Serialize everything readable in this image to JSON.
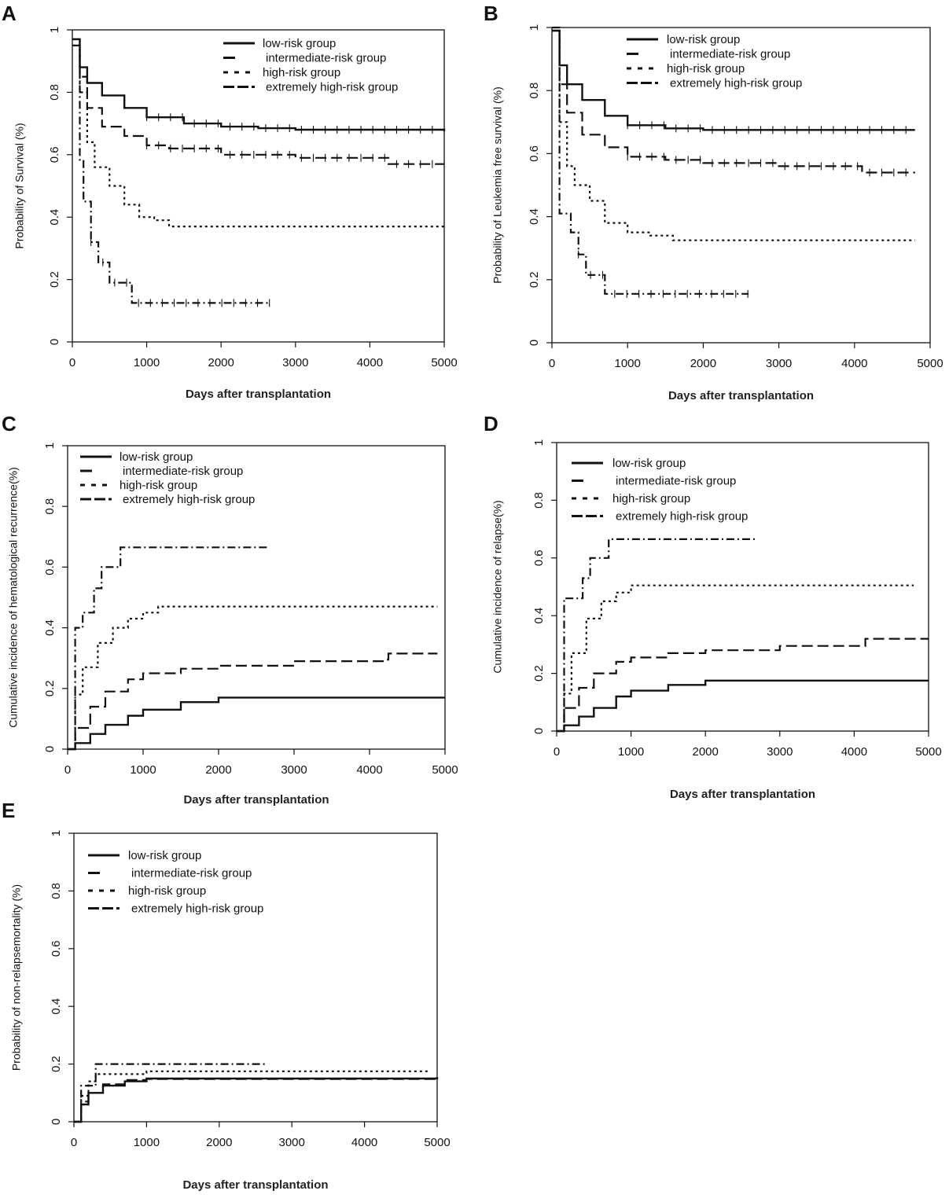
{
  "figure": {
    "x_ticks": [
      "0",
      "1000",
      "2000",
      "3000",
      "4000",
      "5000"
    ],
    "y_ticks": [
      "0",
      "0.2",
      "0.4",
      "0.6",
      "0.8",
      "1"
    ],
    "legend": [
      "low-risk group",
      "intermediate-risk group",
      "high-risk group",
      "extremely high-risk group"
    ],
    "line_color": "#111111"
  },
  "chart_data": [
    {
      "panel": "A",
      "type": "line",
      "title": "",
      "xlabel": "Days after transplantation",
      "ylabel": "Probability of Survival (%)",
      "xlim": [
        0,
        5000
      ],
      "ylim": [
        0,
        1
      ],
      "series": [
        {
          "name": "low-risk group",
          "style": "solid",
          "x": [
            0,
            100,
            200,
            400,
            700,
            1000,
            1500,
            2000,
            2500,
            3000,
            4000,
            5000
          ],
          "y": [
            0.97,
            0.88,
            0.83,
            0.79,
            0.75,
            0.72,
            0.7,
            0.69,
            0.685,
            0.68,
            0.68,
            0.675
          ]
        },
        {
          "name": "intermediate-risk group",
          "style": "longdash",
          "x": [
            0,
            100,
            200,
            400,
            700,
            1000,
            1300,
            2000,
            3000,
            4200,
            4250,
            5000
          ],
          "y": [
            0.97,
            0.85,
            0.75,
            0.69,
            0.66,
            0.63,
            0.62,
            0.6,
            0.59,
            0.59,
            0.57,
            0.57
          ]
        },
        {
          "name": "high-risk group",
          "style": "dotted",
          "x": [
            0,
            100,
            200,
            300,
            500,
            700,
            900,
            1100,
            1300,
            2000,
            3000,
            4000,
            5000
          ],
          "y": [
            0.95,
            0.8,
            0.64,
            0.56,
            0.5,
            0.44,
            0.4,
            0.39,
            0.37,
            0.37,
            0.37,
            0.37,
            0.37
          ]
        },
        {
          "name": "extremely high-risk group",
          "style": "dashdot",
          "x": [
            0,
            100,
            150,
            250,
            350,
            500,
            800,
            2650
          ],
          "y": [
            0.95,
            0.58,
            0.45,
            0.32,
            0.255,
            0.19,
            0.125,
            0.125
          ]
        }
      ]
    },
    {
      "panel": "B",
      "type": "line",
      "title": "",
      "xlabel": "Days after transplantation",
      "ylabel": "Probability of Leukemia free survival (%)",
      "xlim": [
        0,
        5000
      ],
      "ylim": [
        0,
        1
      ],
      "series": [
        {
          "name": "low-risk group",
          "style": "solid",
          "x": [
            0,
            100,
            200,
            400,
            700,
            1000,
            1500,
            2000,
            3000,
            4000,
            4800
          ],
          "y": [
            0.99,
            0.88,
            0.82,
            0.77,
            0.72,
            0.69,
            0.68,
            0.675,
            0.675,
            0.675,
            0.675
          ]
        },
        {
          "name": "intermediate-risk group",
          "style": "longdash",
          "x": [
            0,
            100,
            200,
            400,
            700,
            1000,
            1500,
            2000,
            3000,
            4000,
            4100,
            4800
          ],
          "y": [
            0.99,
            0.82,
            0.73,
            0.66,
            0.62,
            0.59,
            0.58,
            0.57,
            0.56,
            0.56,
            0.54,
            0.54
          ]
        },
        {
          "name": "high-risk group",
          "style": "dotted",
          "x": [
            0,
            100,
            200,
            300,
            500,
            700,
            1000,
            1300,
            1600,
            2000,
            3000,
            4800
          ],
          "y": [
            0.99,
            0.7,
            0.56,
            0.5,
            0.45,
            0.38,
            0.35,
            0.34,
            0.325,
            0.325,
            0.325,
            0.325
          ]
        },
        {
          "name": "extremely high-risk group",
          "style": "dashdot",
          "x": [
            0,
            100,
            150,
            250,
            350,
            450,
            650,
            700,
            2600
          ],
          "y": [
            1.0,
            0.41,
            0.41,
            0.35,
            0.28,
            0.215,
            0.215,
            0.155,
            0.155
          ]
        }
      ]
    },
    {
      "panel": "C",
      "type": "line",
      "title": "",
      "xlabel": "Days after transplantation",
      "ylabel": "Cumulative incidence of hematological recurrence(%)",
      "xlim": [
        0,
        5000
      ],
      "ylim": [
        0,
        1
      ],
      "series": [
        {
          "name": "low-risk group",
          "style": "solid",
          "x": [
            0,
            100,
            300,
            500,
            800,
            1000,
            1500,
            2000,
            5000
          ],
          "y": [
            0,
            0.02,
            0.05,
            0.08,
            0.11,
            0.13,
            0.155,
            0.17,
            0.17
          ]
        },
        {
          "name": "intermediate-risk group",
          "style": "longdash",
          "x": [
            0,
            100,
            300,
            500,
            800,
            1000,
            1500,
            2000,
            3000,
            4200,
            4250,
            4900
          ],
          "y": [
            0,
            0.07,
            0.14,
            0.19,
            0.23,
            0.25,
            0.265,
            0.275,
            0.29,
            0.295,
            0.315,
            0.315
          ]
        },
        {
          "name": "high-risk group",
          "style": "dotted",
          "x": [
            0,
            100,
            200,
            400,
            600,
            800,
            1000,
            1200,
            4900
          ],
          "y": [
            0,
            0.18,
            0.27,
            0.35,
            0.4,
            0.43,
            0.45,
            0.47,
            0.47
          ]
        },
        {
          "name": "extremely high-risk group",
          "style": "dashdot",
          "x": [
            0,
            100,
            200,
            350,
            450,
            650,
            700,
            2650
          ],
          "y": [
            0,
            0.4,
            0.45,
            0.53,
            0.6,
            0.6,
            0.665,
            0.665
          ]
        }
      ]
    },
    {
      "panel": "D",
      "type": "line",
      "title": "",
      "xlabel": "Days after transplantation",
      "ylabel": "Cumulative incidence of relapse(%)",
      "xlim": [
        0,
        5000
      ],
      "ylim": [
        0,
        1
      ],
      "series": [
        {
          "name": "low-risk group",
          "style": "solid",
          "x": [
            0,
            100,
            300,
            500,
            800,
            1000,
            1500,
            2000,
            5000
          ],
          "y": [
            0,
            0.02,
            0.05,
            0.08,
            0.12,
            0.14,
            0.16,
            0.175,
            0.175
          ]
        },
        {
          "name": "intermediate-risk group",
          "style": "longdash",
          "x": [
            0,
            100,
            300,
            500,
            800,
            1000,
            1500,
            2000,
            3000,
            4100,
            4150,
            5000
          ],
          "y": [
            0,
            0.08,
            0.15,
            0.2,
            0.24,
            0.255,
            0.27,
            0.28,
            0.295,
            0.295,
            0.32,
            0.32
          ]
        },
        {
          "name": "high-risk group",
          "style": "dotted",
          "x": [
            0,
            100,
            200,
            400,
            600,
            800,
            1000,
            4800
          ],
          "y": [
            0,
            0.13,
            0.27,
            0.39,
            0.45,
            0.48,
            0.505,
            0.505
          ]
        },
        {
          "name": "extremely high-risk group",
          "style": "dashdot",
          "x": [
            0,
            100,
            200,
            350,
            450,
            650,
            700,
            2700
          ],
          "y": [
            0,
            0.46,
            0.46,
            0.53,
            0.6,
            0.6,
            0.665,
            0.665
          ]
        }
      ]
    },
    {
      "panel": "E",
      "type": "line",
      "title": "",
      "xlabel": "Days after transplantation",
      "ylabel": "Probability of non-relapsemortality (%)",
      "xlim": [
        0,
        5000
      ],
      "ylim": [
        0,
        1
      ],
      "series": [
        {
          "name": "low-risk group",
          "style": "solid",
          "x": [
            0,
            100,
            200,
            400,
            700,
            1000,
            5000
          ],
          "y": [
            0,
            0.06,
            0.1,
            0.125,
            0.14,
            0.15,
            0.155
          ]
        },
        {
          "name": "intermediate-risk group",
          "style": "longdash",
          "x": [
            0,
            100,
            200,
            400,
            700,
            1000,
            5000
          ],
          "y": [
            0,
            0.07,
            0.1,
            0.13,
            0.145,
            0.148,
            0.148
          ]
        },
        {
          "name": "high-risk group",
          "style": "dotted",
          "x": [
            0,
            100,
            200,
            300,
            1000,
            4900
          ],
          "y": [
            0,
            0.09,
            0.14,
            0.165,
            0.175,
            0.175
          ]
        },
        {
          "name": "extremely high-risk group",
          "style": "dashdot",
          "x": [
            0,
            100,
            250,
            300,
            2650
          ],
          "y": [
            0,
            0.125,
            0.125,
            0.2,
            0.2
          ]
        }
      ]
    }
  ]
}
